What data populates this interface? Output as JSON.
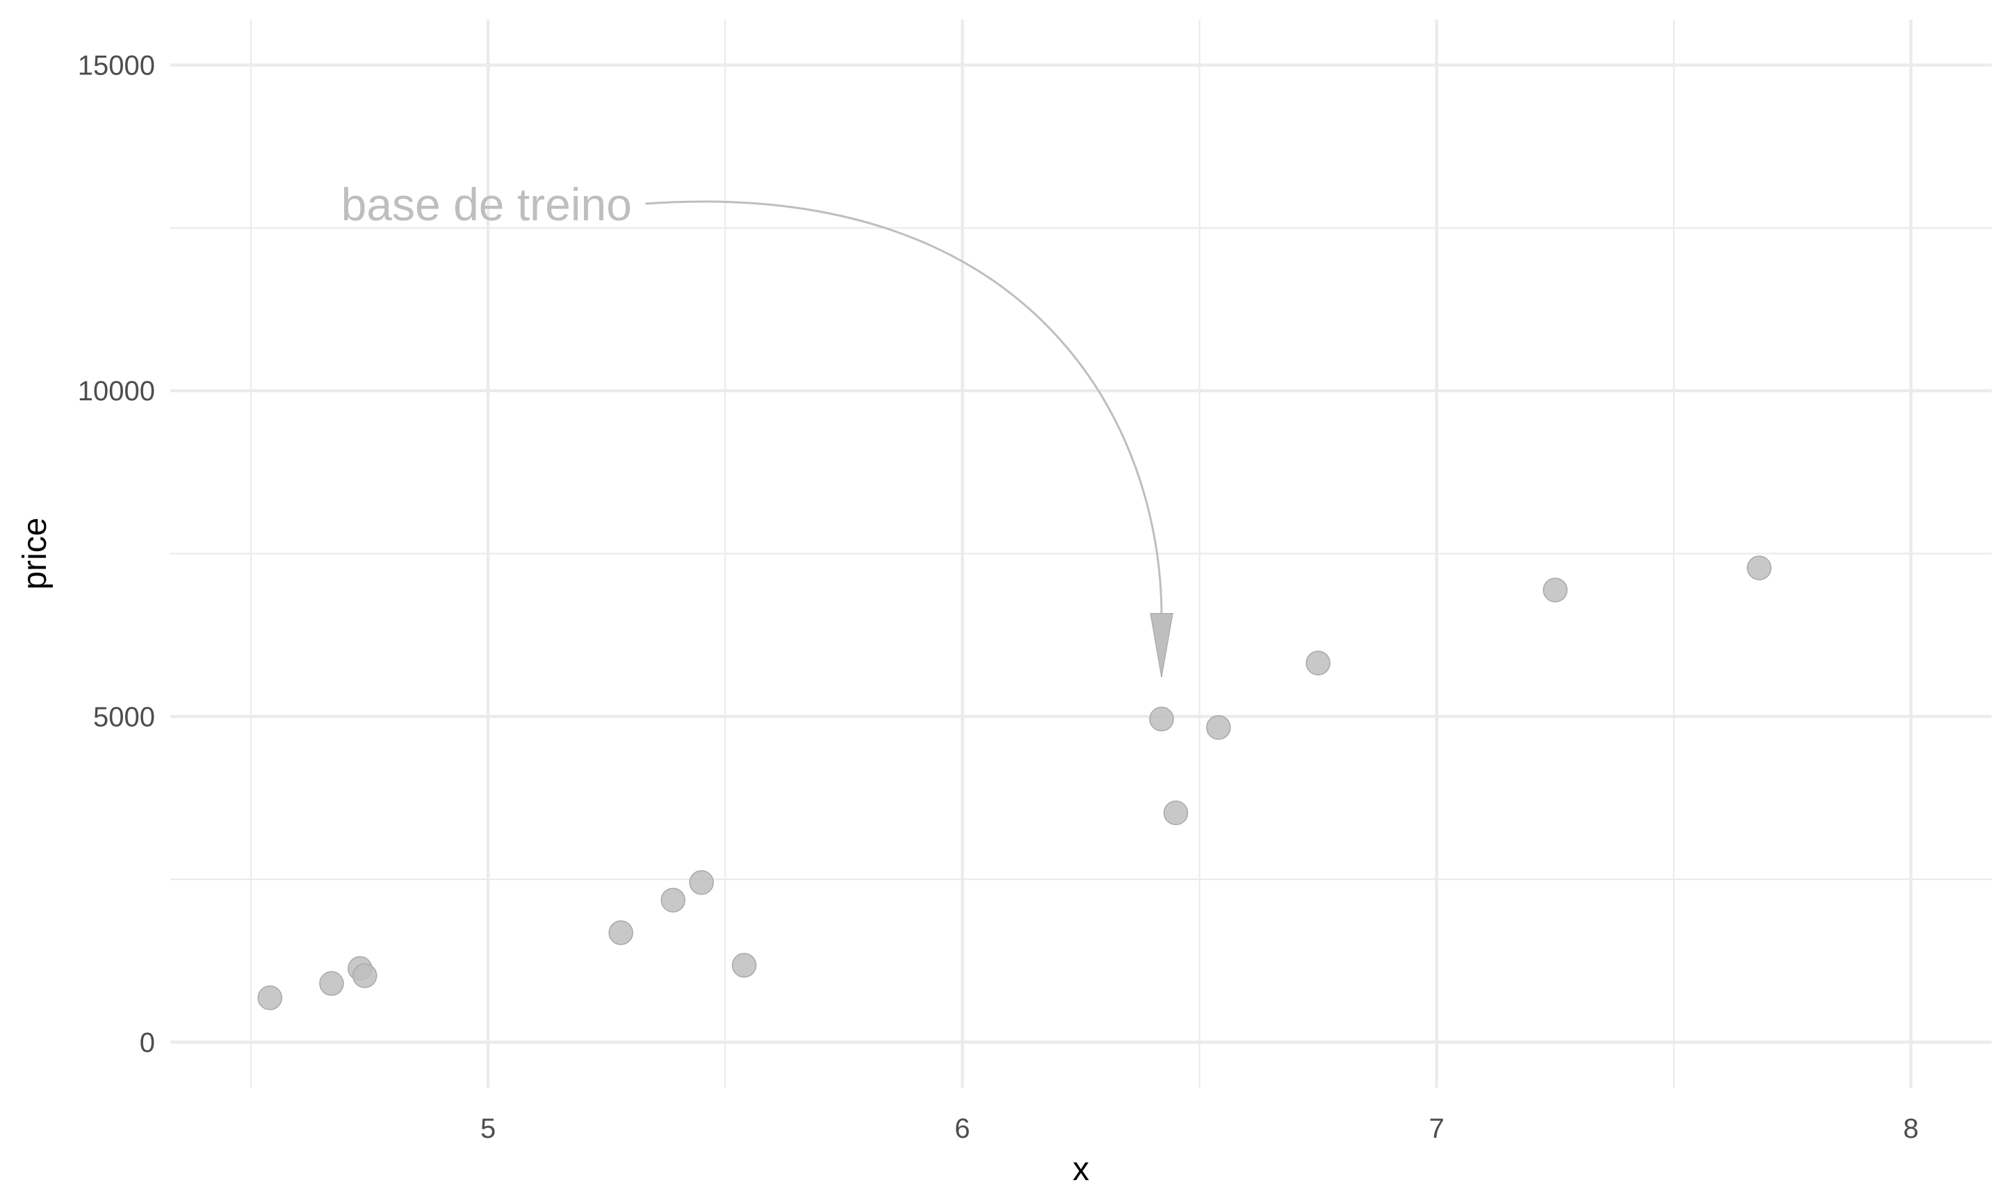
{
  "chart_data": {
    "type": "scatter",
    "title": "",
    "xlabel": "x",
    "ylabel": "price",
    "xlim": [
      4.33,
      8.17
    ],
    "ylim": [
      -700,
      15700
    ],
    "x_major_ticks": [
      5,
      6,
      7,
      8
    ],
    "x_minor_ticks": [
      4.5,
      5.5,
      6.5,
      7.5
    ],
    "y_major_ticks": [
      0,
      5000,
      10000,
      15000
    ],
    "y_minor_ticks": [
      2500,
      7500,
      12500
    ],
    "x_tick_labels": [
      "5",
      "6",
      "7",
      "8"
    ],
    "y_tick_labels": [
      "0",
      "5000",
      "10000",
      "15000"
    ],
    "grid": true,
    "legend": "none",
    "point_color": "#bebebe",
    "points": [
      {
        "x": 4.54,
        "y": 680
      },
      {
        "x": 4.67,
        "y": 900
      },
      {
        "x": 4.73,
        "y": 1130
      },
      {
        "x": 4.74,
        "y": 1020
      },
      {
        "x": 5.28,
        "y": 1680
      },
      {
        "x": 5.39,
        "y": 2180
      },
      {
        "x": 5.45,
        "y": 2450
      },
      {
        "x": 5.54,
        "y": 1180
      },
      {
        "x": 6.42,
        "y": 4960
      },
      {
        "x": 6.45,
        "y": 3520
      },
      {
        "x": 6.54,
        "y": 4830
      },
      {
        "x": 6.75,
        "y": 5820
      },
      {
        "x": 7.25,
        "y": 6940
      },
      {
        "x": 7.68,
        "y": 7280
      }
    ],
    "annotations": [
      {
        "text": "base de treino",
        "x": 4.69,
        "y": 12850,
        "arrow_to": {
          "x": 6.42,
          "y": 5600
        },
        "color": "#bebebe"
      }
    ]
  }
}
